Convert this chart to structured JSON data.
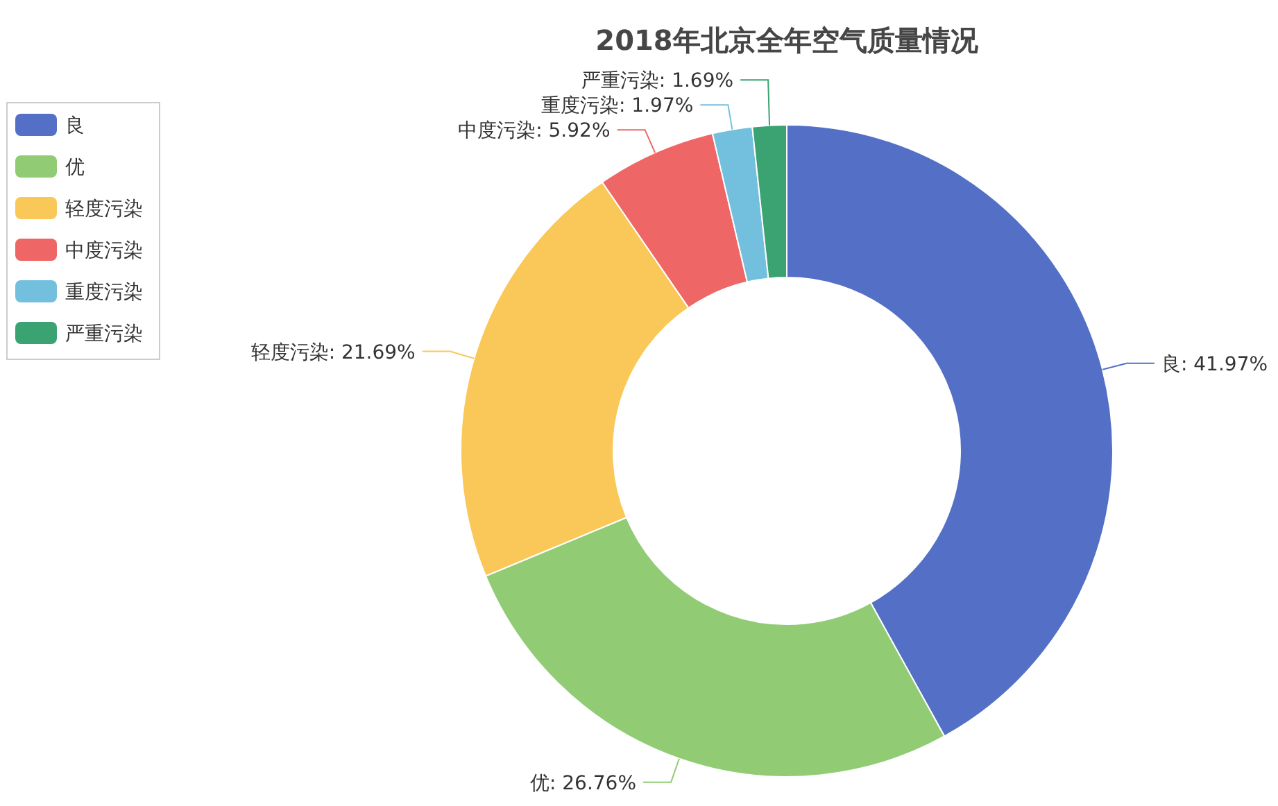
{
  "chart_data": {
    "type": "donut",
    "title": "2018年北京全年空气质量情况",
    "categories": [
      "良",
      "优",
      "轻度污染",
      "中度污染",
      "重度污染",
      "严重污染"
    ],
    "values": [
      41.97,
      26.76,
      21.69,
      5.92,
      1.97,
      1.69
    ],
    "colors": [
      "#5470c6",
      "#91cc75",
      "#fac858",
      "#ee6666",
      "#73c0de",
      "#3ba272"
    ],
    "value_labels": [
      "良: 41.97%",
      "优: 26.76%",
      "轻度污染: 21.69%",
      "中度污染: 5.92%",
      "重度污染: 1.97%",
      "严重污染: 1.69%"
    ],
    "legend": "left"
  }
}
